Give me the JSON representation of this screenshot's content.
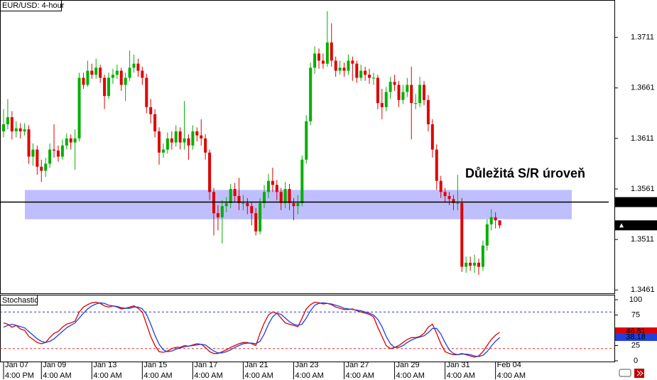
{
  "chart_data": [
    {
      "type": "candlestick",
      "title": "EUR/USD: 4-hour",
      "open": [
        1.3618,
        1.3625,
        1.3632,
        1.3618,
        1.3621,
        1.3618,
        1.362,
        1.3593,
        1.36,
        1.3583,
        1.3579,
        1.3586,
        1.36,
        1.3599,
        1.3593,
        1.3604,
        1.3611,
        1.3607,
        1.3611,
        1.3671,
        1.3664,
        1.3678,
        1.3674,
        1.3681,
        1.3671,
        1.3653,
        1.3671,
        1.3674,
        1.3678,
        1.3664,
        1.3671,
        1.3681,
        1.3685,
        1.3678,
        1.3671,
        1.3642,
        1.3635,
        1.3618,
        1.3597,
        1.36,
        1.3611,
        1.3607,
        1.3618,
        1.3607,
        1.3611,
        1.3604,
        1.3618,
        1.3614,
        1.3611,
        1.3597,
        1.3558,
        1.3537,
        1.3533,
        1.3544,
        1.3547,
        1.3561,
        1.3554,
        1.3547,
        1.3547,
        1.3544,
        1.3537,
        1.3519,
        1.3547,
        1.3558,
        1.3569,
        1.3565,
        1.3558,
        1.3547,
        1.3561,
        1.3547,
        1.3544,
        1.3547,
        1.359,
        1.3628,
        1.3681,
        1.3695,
        1.3688,
        1.3685,
        1.3706,
        1.3688,
        1.3678,
        1.3681,
        1.3678,
        1.3688,
        1.3685,
        1.3671,
        1.3678,
        1.3674,
        1.3671,
        1.3671,
        1.3646,
        1.3642,
        1.3657,
        1.3667,
        1.3664,
        1.3649,
        1.3657,
        1.3664,
        1.3646,
        1.3646,
        1.3664,
        1.3649,
        1.3625,
        1.36,
        1.3569,
        1.3558,
        1.3554,
        1.3551,
        1.3547,
        1.3547,
        1.3484,
        1.3488,
        1.3485,
        1.3488,
        1.3484,
        1.3505,
        1.3526,
        1.3533,
        1.353
      ],
      "high": [
        1.364,
        1.365,
        1.3638,
        1.3628,
        1.3626,
        1.3626,
        1.3624,
        1.3606,
        1.3604,
        1.359,
        1.3592,
        1.3606,
        1.3625,
        1.3604,
        1.361,
        1.3616,
        1.3615,
        1.362,
        1.3676,
        1.3676,
        1.3688,
        1.3685,
        1.369,
        1.3684,
        1.3674,
        1.3676,
        1.368,
        1.3684,
        1.3681,
        1.3676,
        1.3698,
        1.3694,
        1.369,
        1.3682,
        1.3675,
        1.365,
        1.364,
        1.3622,
        1.3606,
        1.3617,
        1.3618,
        1.3624,
        1.3622,
        1.3648,
        1.3615,
        1.3624,
        1.3622,
        1.363,
        1.3615,
        1.36,
        1.3562,
        1.3545,
        1.355,
        1.3553,
        1.3566,
        1.3567,
        1.3572,
        1.3555,
        1.3552,
        1.3548,
        1.3542,
        1.3552,
        1.3565,
        1.3576,
        1.3582,
        1.357,
        1.3562,
        1.3568,
        1.3566,
        1.3552,
        1.3555,
        1.3594,
        1.3634,
        1.3686,
        1.3702,
        1.37,
        1.3695,
        1.3737,
        1.3725,
        1.3692,
        1.3688,
        1.3686,
        1.3694,
        1.3692,
        1.3688,
        1.3684,
        1.3682,
        1.368,
        1.3676,
        1.3674,
        1.366,
        1.3662,
        1.3672,
        1.3674,
        1.3668,
        1.3664,
        1.3671,
        1.3682,
        1.3655,
        1.3672,
        1.3668,
        1.3654,
        1.363,
        1.3605,
        1.3574,
        1.3562,
        1.3558,
        1.3555,
        1.3575,
        1.3552,
        1.3494,
        1.3494,
        1.3496,
        1.3492,
        1.351,
        1.3531,
        1.3541,
        1.3538,
        1.3528
      ],
      "low": [
        1.3612,
        1.362,
        1.361,
        1.3612,
        1.3611,
        1.3614,
        1.3586,
        1.3584,
        1.3575,
        1.3568,
        1.3573,
        1.3582,
        1.3592,
        1.3588,
        1.359,
        1.36,
        1.36,
        1.358,
        1.3608,
        1.366,
        1.3662,
        1.367,
        1.367,
        1.3666,
        1.364,
        1.365,
        1.3665,
        1.367,
        1.3658,
        1.3648,
        1.3668,
        1.3676,
        1.3672,
        1.3664,
        1.3636,
        1.3626,
        1.3612,
        1.3585,
        1.3592,
        1.3596,
        1.36,
        1.3603,
        1.36,
        1.36,
        1.359,
        1.36,
        1.3608,
        1.3604,
        1.359,
        1.355,
        1.3515,
        1.352,
        1.3507,
        1.3538,
        1.3542,
        1.3548,
        1.354,
        1.354,
        1.3536,
        1.3525,
        1.3515,
        1.3516,
        1.3542,
        1.3552,
        1.3558,
        1.355,
        1.354,
        1.3542,
        1.354,
        1.353,
        1.3536,
        1.3544,
        1.3586,
        1.3624,
        1.3675,
        1.368,
        1.368,
        1.3682,
        1.3682,
        1.3672,
        1.3674,
        1.3672,
        1.3674,
        1.3668,
        1.3666,
        1.3668,
        1.3668,
        1.3665,
        1.3664,
        1.364,
        1.363,
        1.3638,
        1.365,
        1.3658,
        1.3642,
        1.3645,
        1.3652,
        1.361,
        1.364,
        1.3642,
        1.3644,
        1.3618,
        1.3592,
        1.356,
        1.3552,
        1.3548,
        1.3545,
        1.354,
        1.354,
        1.3479,
        1.3478,
        1.348,
        1.3478,
        1.3476,
        1.348,
        1.35,
        1.352,
        1.3522,
        1.3522
      ],
      "close": [
        1.3625,
        1.3632,
        1.3618,
        1.3621,
        1.3618,
        1.362,
        1.3593,
        1.36,
        1.3583,
        1.3579,
        1.3586,
        1.36,
        1.3599,
        1.3593,
        1.3604,
        1.3611,
        1.3607,
        1.3611,
        1.3671,
        1.3664,
        1.3678,
        1.3674,
        1.3681,
        1.3671,
        1.3653,
        1.3671,
        1.3674,
        1.3678,
        1.3664,
        1.3671,
        1.3681,
        1.3685,
        1.3678,
        1.3671,
        1.3642,
        1.3635,
        1.3618,
        1.3597,
        1.36,
        1.3611,
        1.3607,
        1.3618,
        1.3607,
        1.3611,
        1.3604,
        1.3618,
        1.3614,
        1.3611,
        1.3597,
        1.3558,
        1.3537,
        1.3533,
        1.3544,
        1.3547,
        1.3561,
        1.3554,
        1.3547,
        1.3547,
        1.3544,
        1.3537,
        1.3519,
        1.3547,
        1.3558,
        1.3569,
        1.3565,
        1.3558,
        1.3547,
        1.3561,
        1.3547,
        1.3544,
        1.3547,
        1.359,
        1.3628,
        1.3681,
        1.3695,
        1.3688,
        1.3685,
        1.3706,
        1.3688,
        1.3678,
        1.3681,
        1.3678,
        1.3688,
        1.3685,
        1.3671,
        1.3678,
        1.3674,
        1.3671,
        1.3671,
        1.3646,
        1.3642,
        1.3657,
        1.3667,
        1.3664,
        1.3649,
        1.3657,
        1.3664,
        1.3646,
        1.3646,
        1.3664,
        1.3649,
        1.3625,
        1.36,
        1.3569,
        1.3558,
        1.3554,
        1.3551,
        1.3547,
        1.3547,
        1.3484,
        1.3488,
        1.3485,
        1.3488,
        1.3484,
        1.3505,
        1.3526,
        1.3533,
        1.353,
        1.3525
      ],
      "up_color": "#00b000",
      "down_color": "#e00000",
      "ylim": [
        1.3457,
        1.3748
      ],
      "yticks": [
        1.3461,
        1.3511,
        1.3561,
        1.3611,
        1.3661,
        1.3711
      ],
      "hline": 1.3548,
      "zone": {
        "from": 1.3531,
        "to": 1.356,
        "color": "#b4b4ff"
      },
      "annotation": "Důležitá S/R úroveň"
    },
    {
      "type": "line",
      "title": "Stochastic",
      "ylim": [
        0,
        100
      ],
      "yticks": [
        0,
        25,
        75,
        100
      ],
      "levels": [
        {
          "value": 80,
          "color": "#3030d0"
        },
        {
          "value": 20,
          "color": "#e03030"
        }
      ],
      "series": [
        {
          "color": "#e00000",
          "values": [
            62,
            60,
            55,
            58,
            52,
            50,
            40,
            35,
            30,
            28,
            30,
            38,
            45,
            48,
            55,
            60,
            62,
            65,
            80,
            88,
            92,
            95,
            96,
            94,
            90,
            88,
            90,
            88,
            85,
            86,
            88,
            90,
            86,
            80,
            60,
            40,
            25,
            15,
            14,
            16,
            20,
            22,
            22,
            25,
            24,
            26,
            28,
            27,
            22,
            15,
            12,
            12,
            15,
            18,
            22,
            25,
            28,
            30,
            30,
            28,
            25,
            45,
            62,
            75,
            80,
            78,
            70,
            62,
            60,
            58,
            56,
            70,
            85,
            92,
            96,
            95,
            93,
            94,
            92,
            88,
            86,
            84,
            84,
            85,
            82,
            80,
            78,
            76,
            72,
            55,
            40,
            25,
            20,
            22,
            25,
            30,
            35,
            38,
            38,
            40,
            45,
            55,
            60,
            45,
            28,
            15,
            12,
            10,
            10,
            12,
            10,
            8,
            6,
            8,
            15,
            25,
            35,
            42,
            46.81
          ]
        },
        {
          "color": "#2040e0",
          "values": [
            55,
            58,
            60,
            58,
            56,
            54,
            48,
            42,
            36,
            32,
            30,
            32,
            36,
            42,
            48,
            54,
            58,
            62,
            70,
            78,
            85,
            90,
            93,
            95,
            94,
            91,
            90,
            89,
            87,
            86,
            86,
            88,
            88,
            85,
            76,
            60,
            42,
            27,
            18,
            15,
            16,
            19,
            21,
            23,
            24,
            25,
            26,
            27,
            26,
            21,
            16,
            13,
            13,
            15,
            18,
            22,
            25,
            28,
            29,
            29,
            28,
            32,
            44,
            60,
            72,
            78,
            76,
            70,
            64,
            60,
            58,
            60,
            70,
            82,
            91,
            94,
            95,
            94,
            93,
            91,
            89,
            86,
            85,
            84,
            83,
            82,
            80,
            78,
            75,
            68,
            56,
            40,
            28,
            22,
            22,
            25,
            30,
            34,
            37,
            39,
            41,
            46,
            53,
            53,
            44,
            30,
            18,
            12,
            10,
            11,
            11,
            10,
            8,
            7,
            9,
            15,
            24,
            32,
            38.18
          ]
        }
      ],
      "xticks": [
        {
          "value": 0,
          "label": "Jan 07"
        },
        {
          "value": 9,
          "label": "Jan 09"
        },
        {
          "value": 21,
          "label": "Jan 13"
        },
        {
          "value": 33,
          "label": "Jan 15"
        },
        {
          "value": 45,
          "label": "Jan 17"
        },
        {
          "value": 57,
          "label": "Jan 21"
        },
        {
          "value": 69,
          "label": "Jan 23"
        },
        {
          "value": 81,
          "label": "Jan 27"
        },
        {
          "value": 93,
          "label": "Jan 29"
        },
        {
          "value": 105,
          "label": "Jan 31"
        },
        {
          "value": 117,
          "label": "Feb 04"
        }
      ],
      "xtick_times": [
        "4:00 PM",
        "4:00 AM",
        "4:00 AM",
        "4:00 AM",
        "4:00 AM",
        "4:00 AM",
        "4:00 AM",
        "4:00 AM",
        "4:00 AM",
        "4:00 AM",
        "4:00 AM"
      ]
    }
  ]
}
